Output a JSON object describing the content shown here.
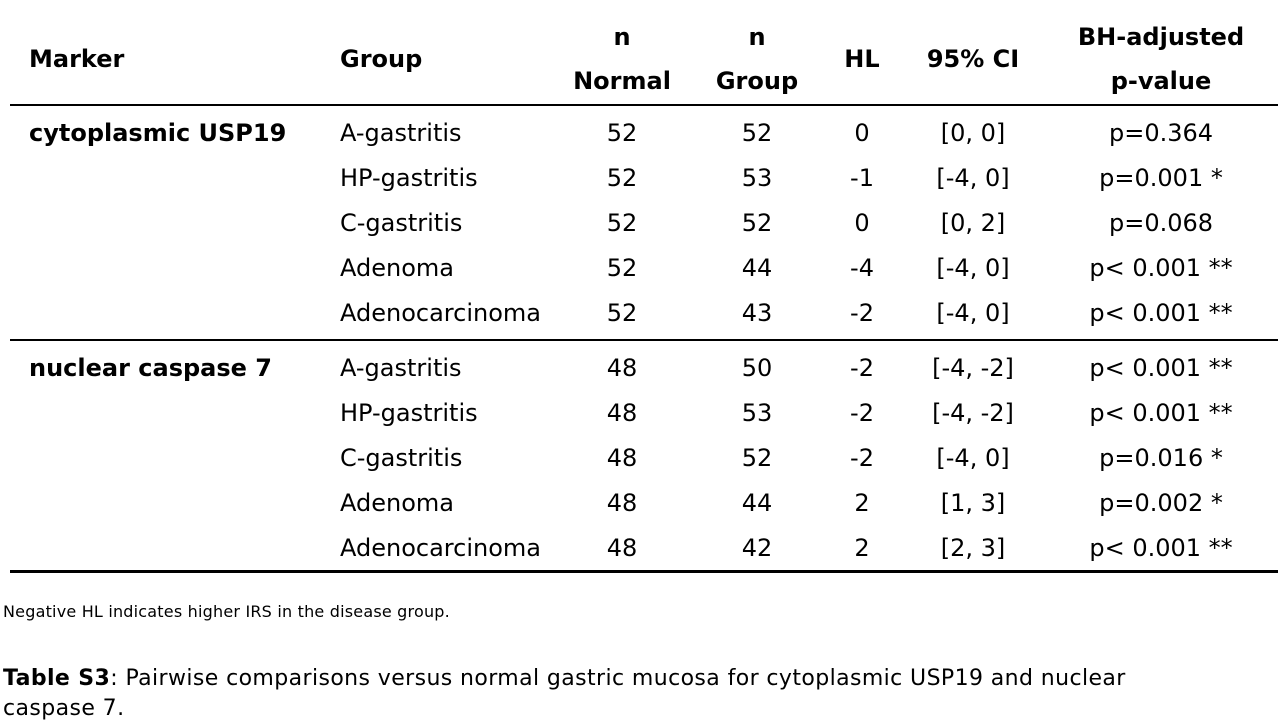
{
  "table": {
    "headers": {
      "marker": "Marker",
      "group": "Group",
      "n_normal_line1": "n",
      "n_normal_line2": "Normal",
      "n_group_line1": "n",
      "n_group_line2": "Group",
      "hl": "HL",
      "ci": "95% CI",
      "pval_line1": "BH-adjusted",
      "pval_line2": "p-value"
    },
    "sections": [
      {
        "marker": "cytoplasmic  USP19",
        "rows": [
          {
            "group": "A-gastritis",
            "n_normal": "52",
            "n_group": "52",
            "hl": "0",
            "ci": "[0, 0]",
            "p": "p=0.364"
          },
          {
            "group": "HP-gastritis",
            "n_normal": "52",
            "n_group": "53",
            "hl": "-1",
            "ci": "[-4, 0]",
            "p": "p=0.001 *"
          },
          {
            "group": "C-gastritis",
            "n_normal": "52",
            "n_group": "52",
            "hl": "0",
            "ci": "[0, 2]",
            "p": "p=0.068"
          },
          {
            "group": "Adenoma",
            "n_normal": "52",
            "n_group": "44",
            "hl": "-4",
            "ci": "[-4, 0]",
            "p": "p< 0.001 **"
          },
          {
            "group": "Adenocarcinoma",
            "n_normal": "52",
            "n_group": "43",
            "hl": "-2",
            "ci": "[-4, 0]",
            "p": "p< 0.001 **"
          }
        ]
      },
      {
        "marker": "nuclear caspase 7",
        "rows": [
          {
            "group": "A-gastritis",
            "n_normal": "48",
            "n_group": "50",
            "hl": "-2",
            "ci": "[-4, -2]",
            "p": "p< 0.001 **"
          },
          {
            "group": "HP-gastritis",
            "n_normal": "48",
            "n_group": "53",
            "hl": "-2",
            "ci": "[-4, -2]",
            "p": "p< 0.001 **"
          },
          {
            "group": "C-gastritis",
            "n_normal": "48",
            "n_group": "52",
            "hl": "-2",
            "ci": "[-4, 0]",
            "p": "p=0.016 *"
          },
          {
            "group": "Adenoma",
            "n_normal": "48",
            "n_group": "44",
            "hl": "2",
            "ci": "[1, 3]",
            "p": "p=0.002 *"
          },
          {
            "group": "Adenocarcinoma",
            "n_normal": "48",
            "n_group": "42",
            "hl": "2",
            "ci": "[2, 3]",
            "p": "p< 0.001 **"
          }
        ]
      }
    ]
  },
  "note": "Negative HL indicates higher IRS in the disease group.",
  "caption": {
    "label": "Table S3",
    "text": ": Pairwise comparisons versus normal gastric mucosa for cytoplasmic USP19 and nuclear caspase 7."
  }
}
